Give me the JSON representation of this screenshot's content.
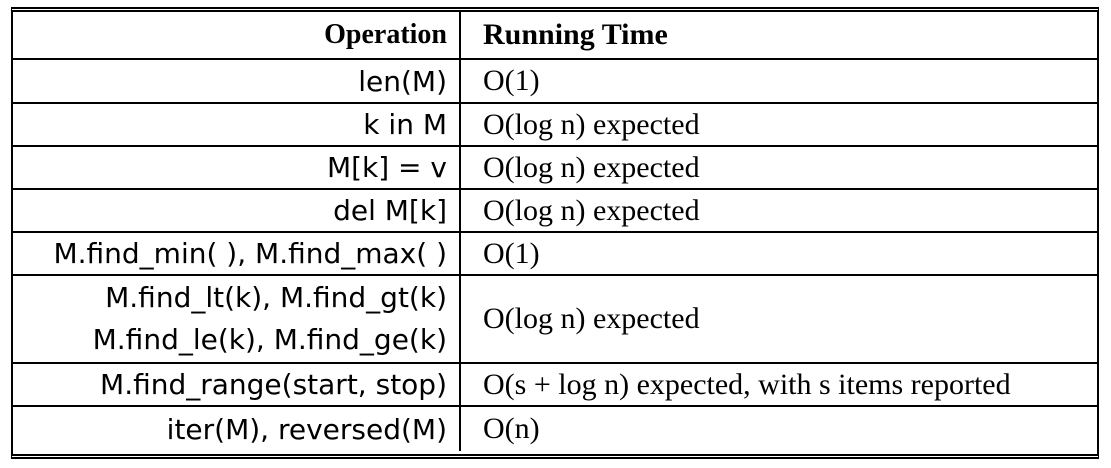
{
  "table": {
    "headers": {
      "operation": "Operation",
      "running_time": "Running Time"
    },
    "rows": [
      {
        "operation": [
          "len(M)"
        ],
        "running_time": "O(1)"
      },
      {
        "operation": [
          "k in M"
        ],
        "running_time": "O(log n) expected"
      },
      {
        "operation": [
          "M[k] = v"
        ],
        "running_time": "O(log n) expected"
      },
      {
        "operation": [
          "del M[k]"
        ],
        "running_time": "O(log n) expected"
      },
      {
        "operation": [
          "M.find_min( ), M.find_max( )"
        ],
        "running_time": "O(1)"
      },
      {
        "operation": [
          "M.find_lt(k), M.find_gt(k)",
          "M.find_le(k), M.find_ge(k)"
        ],
        "running_time": "O(log n) expected"
      },
      {
        "operation": [
          "M.find_range(start, stop)"
        ],
        "running_time": "O(s + log n) expected, with s items reported"
      },
      {
        "operation": [
          "iter(M), reversed(M)"
        ],
        "running_time": "O(n)"
      }
    ]
  }
}
